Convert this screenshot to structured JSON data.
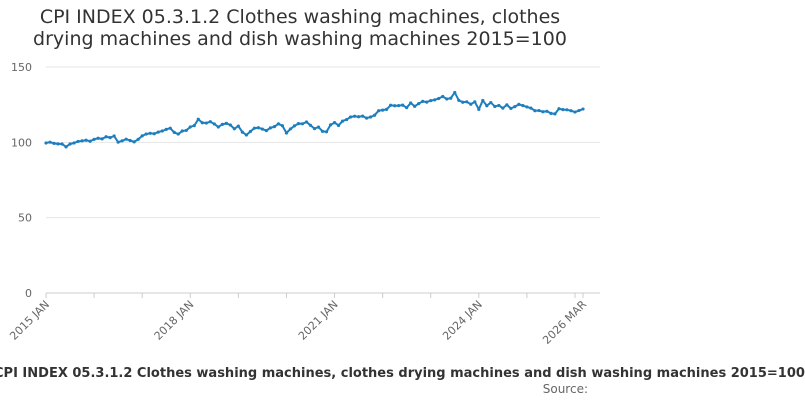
{
  "chart_data": {
    "type": "line",
    "title_lines": [
      "CPI INDEX 05.3.1.2 Clothes washing machines, clothes",
      "drying machines and dish washing machines 2015=100"
    ],
    "xlabel": "",
    "ylabel": "",
    "ylim": [
      0,
      150
    ],
    "y_ticks": [
      0,
      50,
      100,
      150
    ],
    "x_ticks": [
      "2015 JAN",
      "2018 JAN",
      "2021 JAN",
      "2024 JAN",
      "2026 MAR"
    ],
    "x_tick_positions": [
      0,
      36,
      72,
      108,
      134
    ],
    "grid": true,
    "legend_caption": "CPI INDEX 05.3.1.2 Clothes washing machines, clothes drying machines and dish washing machines 2015=100",
    "source_label": "Source:",
    "series": [
      {
        "color": "#1e7fbf",
        "start": "2015-01",
        "end": "2026-03",
        "values": [
          99.6,
          100.1,
          99.3,
          99.0,
          98.9,
          97.0,
          98.9,
          99.6,
          100.6,
          101.0,
          101.4,
          100.7,
          102.0,
          102.7,
          102.3,
          103.7,
          103.1,
          104.2,
          100.1,
          101.0,
          102.1,
          101.2,
          100.3,
          102.0,
          104.3,
          105.5,
          106.0,
          105.7,
          106.8,
          107.5,
          108.6,
          109.4,
          106.6,
          105.5,
          107.5,
          107.9,
          110.2,
          111.1,
          115.3,
          113.0,
          112.8,
          113.7,
          112.2,
          110.2,
          111.9,
          112.6,
          111.5,
          109.0,
          110.8,
          106.8,
          104.9,
          107.2,
          109.4,
          109.7,
          108.8,
          107.8,
          109.6,
          110.4,
          112.3,
          111.0,
          106.2,
          108.9,
          110.9,
          112.4,
          112.3,
          113.5,
          111.3,
          109.1,
          110.1,
          107.3,
          107.0,
          111.6,
          113.1,
          111.2,
          114.1,
          115.1,
          116.8,
          117.3,
          117.0,
          117.4,
          116.1,
          116.8,
          118.0,
          121.0,
          121.4,
          121.9,
          124.6,
          124.3,
          124.4,
          124.7,
          123.0,
          126.1,
          123.9,
          125.7,
          127.2,
          126.7,
          127.7,
          128.2,
          129.1,
          130.4,
          128.8,
          129.3,
          133.1,
          127.9,
          126.6,
          126.9,
          125.3,
          126.9,
          121.9,
          127.8,
          124.3,
          126.4,
          123.8,
          124.5,
          122.7,
          124.9,
          122.5,
          123.7,
          125.2,
          124.4,
          123.5,
          122.7,
          121.0,
          121.1,
          120.3,
          120.6,
          119.2,
          118.9,
          122.3,
          121.7,
          121.6,
          121.0,
          120.1,
          121.1,
          122.1
        ]
      }
    ]
  }
}
